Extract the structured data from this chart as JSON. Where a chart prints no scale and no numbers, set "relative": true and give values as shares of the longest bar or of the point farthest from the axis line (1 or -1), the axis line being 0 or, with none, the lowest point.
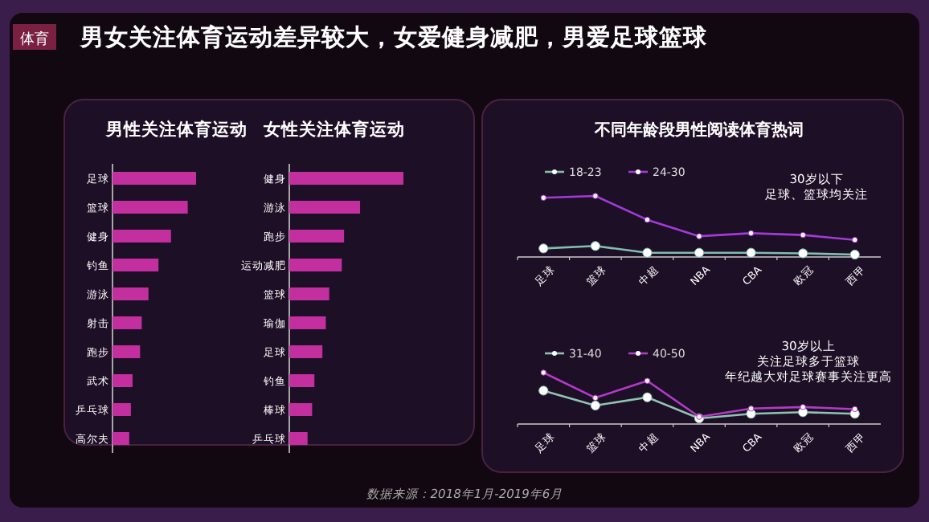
{
  "chart_data": [
    {
      "type": "other",
      "subtitle": "体育",
      "title": "男女关注体育运动差异较大，女爱健身减肥，男爱足球篮球",
      "annotations": [
        "数据来源：2018年1月-2019年6月"
      ]
    },
    {
      "type": "bar",
      "orientation": "horizontal",
      "relative": true,
      "title": "男性关注体育运动",
      "categories": [
        "足球",
        "篮球",
        "健身",
        "钓鱼",
        "游泳",
        "射击",
        "跑步",
        "武术",
        "乒乓球",
        "高尔夫"
      ],
      "series": [
        {
          "color": "#c42fa0",
          "values": [
            1,
            0.9,
            0.7,
            0.55,
            0.43,
            0.35,
            0.33,
            0.24,
            0.22,
            0.2
          ]
        }
      ]
    },
    {
      "type": "bar",
      "orientation": "horizontal",
      "relative": true,
      "title": "女性关注体育运动",
      "categories": [
        "健身",
        "游泳",
        "跑步",
        "运动减肥",
        "篮球",
        "瑜伽",
        "足球",
        "钓鱼",
        "棒球",
        "乒乓球"
      ],
      "series": [
        {
          "color": "#c42fa0",
          "values": [
            1,
            0.62,
            0.48,
            0.46,
            0.35,
            0.32,
            0.29,
            0.22,
            0.2,
            0.16
          ]
        }
      ]
    },
    {
      "type": "line",
      "relative": true,
      "title": "不同年龄段男性阅读体育热词",
      "legend": "top",
      "marker": "circle",
      "categories": [
        "足球",
        "篮球",
        "中超",
        "NBA",
        "CBA",
        "欧冠",
        "西甲"
      ],
      "annotations": [
        "30岁以下",
        "足球、篮球均关注"
      ],
      "series": [
        {
          "name": "18-23",
          "color": "#7fc0ae",
          "values": [
            0.14,
            0.18,
            0.07,
            0.07,
            0.07,
            0.06,
            0.04
          ]
        },
        {
          "name": "24-30",
          "color": "#a33ad8",
          "values": [
            0.97,
            1,
            0.61,
            0.34,
            0.39,
            0.36,
            0.28
          ]
        }
      ]
    },
    {
      "type": "line",
      "relative": true,
      "legend": "top",
      "marker": "circle",
      "categories": [
        "足球",
        "篮球",
        "中超",
        "NBA",
        "CBA",
        "欧冠",
        "西甲"
      ],
      "annotations": [
        "30岁以上",
        "关注足球多于篮球",
        "年纪越大对足球赛事关注更高"
      ],
      "series": [
        {
          "name": "31-40",
          "color": "#8fc4b2",
          "values": [
            0.65,
            0.36,
            0.52,
            0.11,
            0.2,
            0.23,
            0.2
          ]
        },
        {
          "name": "40-50",
          "color": "#b33ac8",
          "values": [
            1,
            0.51,
            0.84,
            0.14,
            0.3,
            0.33,
            0.29
          ]
        }
      ]
    }
  ]
}
